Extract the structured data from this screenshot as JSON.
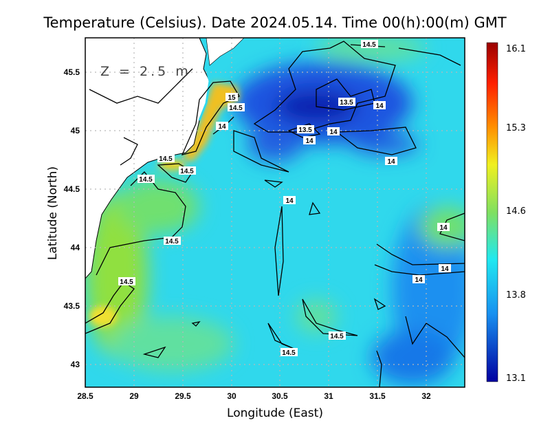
{
  "title": "Temperature (Celsius). Date 2024.05.14. Time 00(h):00(m) GMT",
  "depth_label": "Z = 2.5 m",
  "x_axis": {
    "label": "Longitude (East)",
    "ticks": [
      "28.5",
      "29",
      "29.5",
      "30",
      "30.5",
      "31",
      "31.5",
      "32"
    ],
    "range": [
      28.5,
      32.4
    ]
  },
  "y_axis": {
    "label": "Latitude (North)",
    "ticks": [
      "45.5",
      "45",
      "44.5",
      "44",
      "43.5",
      "43"
    ],
    "range": [
      42.8,
      45.8
    ]
  },
  "colorbar": {
    "labels": [
      "16.1",
      "15.3",
      "14.6",
      "13.8",
      "13.1"
    ],
    "min": 13.1,
    "max": 16.1,
    "colors": [
      "#9a0000",
      "#ff2000",
      "#ff9000",
      "#f0f020",
      "#80e060",
      "#20e8f0",
      "#1890f0",
      "#0000a0"
    ]
  },
  "contour_labels": [
    "13.5",
    "14.5",
    "14",
    "14",
    "13.5",
    "14",
    "14",
    "14",
    "15",
    "14.5",
    "14",
    "14.5",
    "14.5",
    "14.5",
    "14",
    "14.5",
    "14.5",
    "14",
    "14",
    "14.5",
    "14.5"
  ]
}
